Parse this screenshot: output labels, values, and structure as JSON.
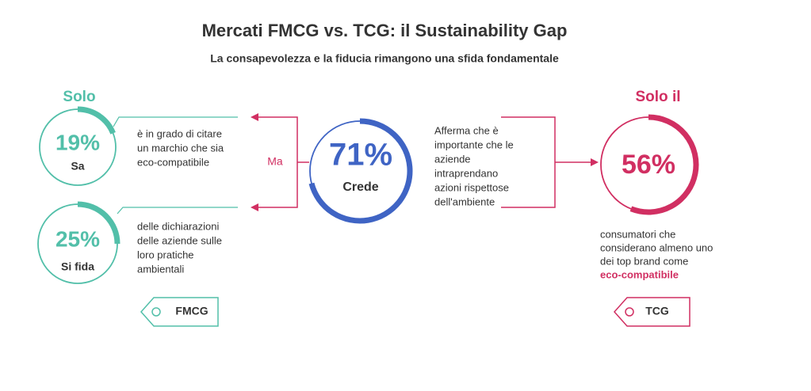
{
  "header": {
    "title": "Mercati FMCG vs. TCG: il Sustainability Gap",
    "subtitle": "La consapevolezza e la fiducia rimangono una sfida fondamentale"
  },
  "fmcg": {
    "heading": "Solo",
    "connector": "Ma",
    "tag": "FMCG",
    "stats": [
      {
        "value": 19,
        "label": "19%",
        "caption": "Sa",
        "description": [
          "è in grado di citare",
          "un marchio che sia",
          "eco-compatibile"
        ]
      },
      {
        "value": 25,
        "label": "25%",
        "caption": "Si fida",
        "description": [
          "delle dichiarazioni",
          "delle aziende sulle",
          "loro pratiche",
          "ambientali"
        ]
      }
    ]
  },
  "center": {
    "value": 71,
    "label": "71%",
    "caption": "Crede",
    "description": [
      "Afferma che è",
      "importante che le",
      "aziende",
      "intraprendano",
      "azioni rispettose",
      "dell'ambiente"
    ]
  },
  "tcg": {
    "heading": "Solo il",
    "value": 56,
    "label": "56%",
    "description": [
      "consumatori che",
      "considerano almeno uno",
      "dei top brand come"
    ],
    "highlight": "eco-compatibile",
    "tag": "TCG"
  }
}
